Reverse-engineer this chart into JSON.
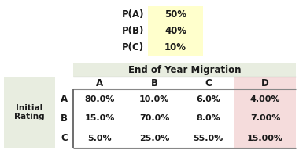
{
  "prob_labels": [
    "P(A)",
    "P(B)",
    "P(C)"
  ],
  "prob_values": [
    "50%",
    "40%",
    "10%"
  ],
  "prob_bg": "#FFFFCC",
  "header_title": "End of Year Migration",
  "header_bg": "#E8EDE0",
  "col_headers": [
    "A",
    "B",
    "C",
    "D"
  ],
  "row_headers": [
    "A",
    "B",
    "C"
  ],
  "table_data": [
    [
      "80.0%",
      "10.0%",
      "6.0%",
      "4.00%"
    ],
    [
      "15.0%",
      "70.0%",
      "8.0%",
      "7.00%"
    ],
    [
      "5.0%",
      "25.0%",
      "55.0%",
      "15.00%"
    ]
  ],
  "d_col_bg": "#F5DCDC",
  "initial_rating_bg": "#E8EDE0",
  "text_color": "#1a1a1a",
  "fig_bg": "#FFFFFF",
  "dpi": 100,
  "fig_w": 3.8,
  "fig_h": 1.93
}
